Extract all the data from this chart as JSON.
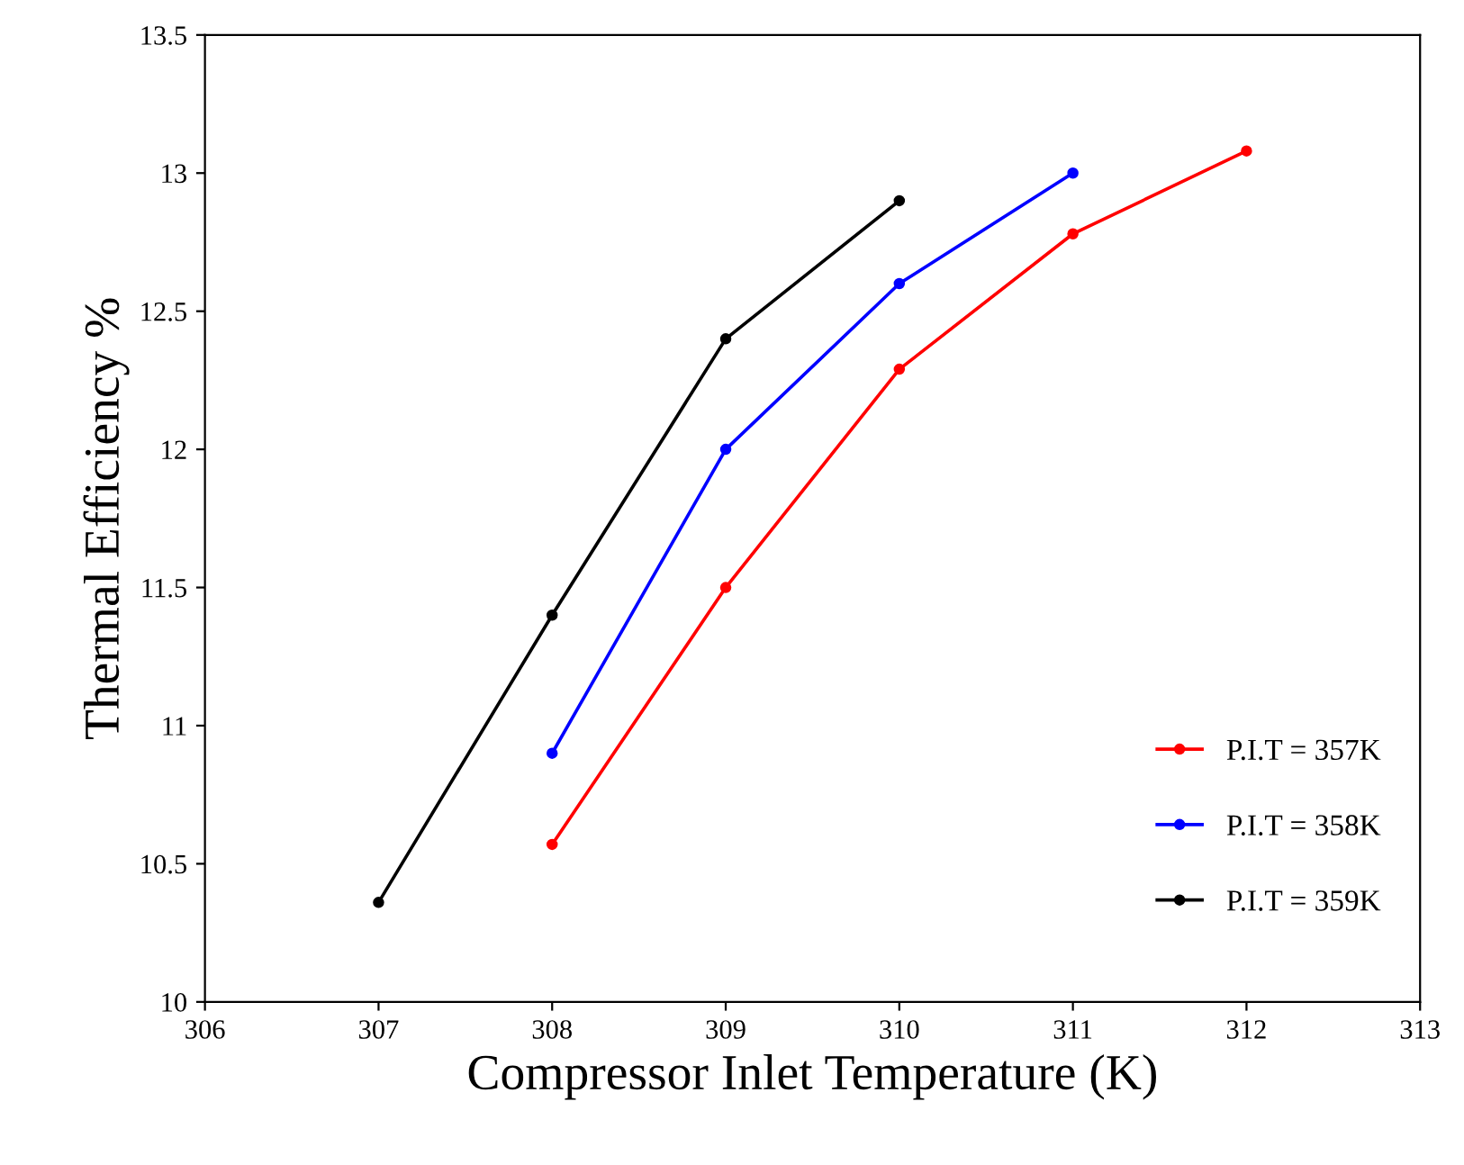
{
  "chart_data": {
    "type": "line",
    "xlabel": "Compressor Inlet Temperature (K)",
    "ylabel": "Thermal Efficiency %",
    "xlim": [
      306,
      313
    ],
    "xticks": [
      306,
      307,
      308,
      309,
      310,
      311,
      312,
      313
    ],
    "ylim": [
      10,
      13.5
    ],
    "yticks": [
      10,
      10.5,
      11,
      11.5,
      12,
      12.5,
      13,
      13.5
    ],
    "grid": false,
    "legend": "bottom right",
    "marker": "circle",
    "line_style": "solid",
    "series": [
      {
        "name": "P.I.T = 357K",
        "color": "#ff0000",
        "x": [
          308,
          309,
          310,
          311,
          312
        ],
        "values": [
          10.57,
          11.5,
          12.29,
          12.78,
          13.08
        ]
      },
      {
        "name": "P.I.T = 358K",
        "color": "#0000ff",
        "x": [
          308,
          309,
          310,
          311
        ],
        "values": [
          10.9,
          12.0,
          12.6,
          13.0
        ]
      },
      {
        "name": "P.I.T = 359K",
        "color": "#000000",
        "x": [
          307,
          308,
          309,
          310
        ],
        "values": [
          10.36,
          11.4,
          12.4,
          12.9
        ]
      }
    ]
  }
}
